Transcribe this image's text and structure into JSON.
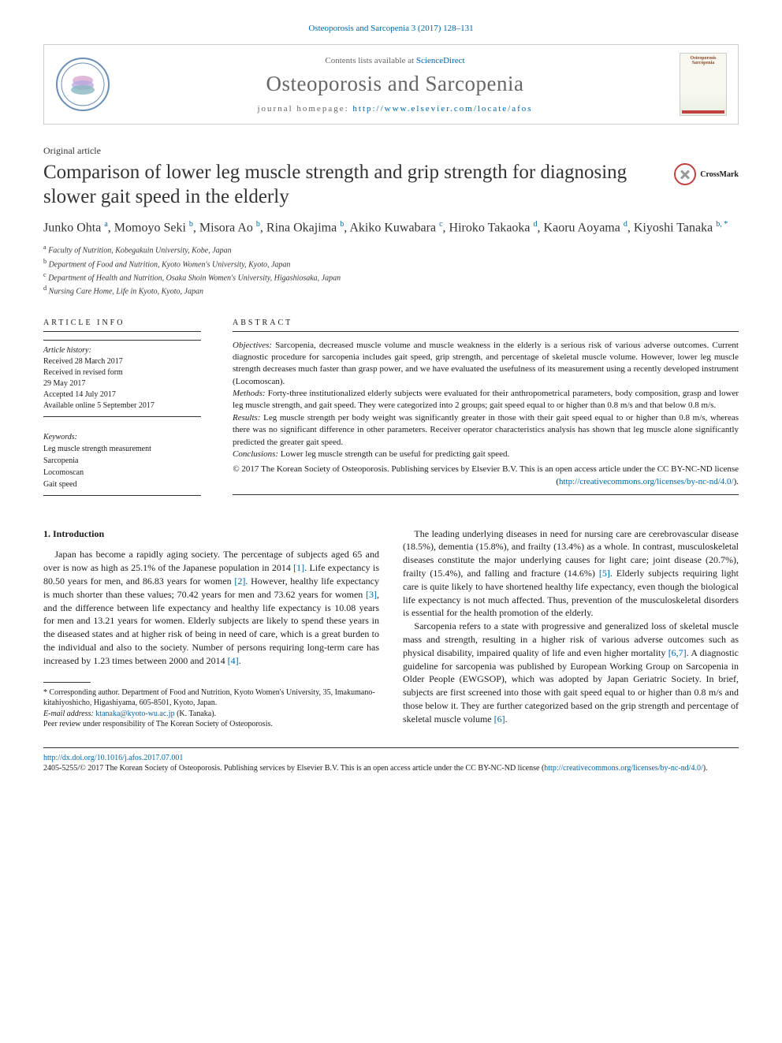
{
  "journal_ref": "Osteoporosis and Sarcopenia 3 (2017) 128–131",
  "header": {
    "contents_prefix": "Contents lists available at ",
    "contents_link": "ScienceDirect",
    "journal_name": "Osteoporosis and Sarcopenia",
    "homepage_prefix": "journal homepage: ",
    "homepage_url": "http://www.elsevier.com/locate/afos",
    "cover_title": "Osteoporosis Sarcopenia"
  },
  "article_type": "Original article",
  "title": "Comparison of lower leg muscle strength and grip strength for diagnosing slower gait speed in the elderly",
  "crossmark": "CrossMark",
  "authors_html": "Junko Ohta <sup>a</sup>, Momoyo Seki <sup>b</sup>, Misora Ao <sup>b</sup>, Rina Okajima <sup>b</sup>, Akiko Kuwabara <sup>c</sup>, Hiroko Takaoka <sup>d</sup>, Kaoru Aoyama <sup>d</sup>, Kiyoshi Tanaka <sup>b, </sup><sup class='star'>*</sup>",
  "affiliations": [
    "a Faculty of Nutrition, Kobegakuin University, Kobe, Japan",
    "b Department of Food and Nutrition, Kyoto Women's University, Kyoto, Japan",
    "c Department of Health and Nutrition, Osaka Shoin Women's University, Higashiosaka, Japan",
    "d Nursing Care Home, Life in Kyoto, Kyoto, Japan"
  ],
  "info": {
    "heading": "ARTICLE INFO",
    "history_label": "Article history:",
    "history": [
      "Received 28 March 2017",
      "Received in revised form",
      "29 May 2017",
      "Accepted 14 July 2017",
      "Available online 5 September 2017"
    ],
    "keywords_label": "Keywords:",
    "keywords": [
      "Leg muscle strength measurement",
      "Sarcopenia",
      "Locomoscan",
      "Gait speed"
    ]
  },
  "abstract": {
    "heading": "ABSTRACT",
    "objectives_label": "Objectives:",
    "objectives": " Sarcopenia, decreased muscle volume and muscle weakness in the elderly is a serious risk of various adverse outcomes. Current diagnostic procedure for sarcopenia includes gait speed, grip strength, and percentage of skeletal muscle volume. However, lower leg muscle strength decreases much faster than grasp power, and we have evaluated the usefulness of its measurement using a recently developed instrument (Locomoscan).",
    "methods_label": "Methods:",
    "methods": " Forty-three institutionalized elderly subjects were evaluated for their anthropometrical parameters, body composition, grasp and lower leg muscle strength, and gait speed. They were categorized into 2 groups; gait speed equal to or higher than 0.8 m/s and that below 0.8 m/s.",
    "results_label": "Results:",
    "results": " Leg muscle strength per body weight was significantly greater in those with their gait speed equal to or higher than 0.8 m/s, whereas there was no significant difference in other parameters. Receiver operator characteristics analysis has shown that leg muscle alone significantly predicted the greater gait speed.",
    "conclusions_label": "Conclusions:",
    "conclusions": " Lower leg muscle strength can be useful for predicting gait speed.",
    "copyright": "© 2017 The Korean Society of Osteoporosis. Publishing services by Elsevier B.V. This is an open access article under the CC BY-NC-ND license (",
    "cc_url": "http://creativecommons.org/licenses/by-nc-nd/4.0/",
    "copyright_suffix": ")."
  },
  "section1_heading": "1. Introduction",
  "para1_a": "Japan has become a rapidly aging society. The percentage of subjects aged 65 and over is now as high as 25.1% of the Japanese population in 2014 ",
  "ref1": "[1]",
  "para1_b": ". Life expectancy is 80.50 years for men, and 86.83 years for women ",
  "ref2": "[2]",
  "para1_c": ". However, healthy life expectancy is much shorter than these values; 70.42 years for men and 73.62 years for women ",
  "ref3": "[3]",
  "para1_d": ", and the difference between life expectancy and healthy life expectancy is 10.08 years for men and 13.21 years for women. Elderly subjects are likely to spend these years in the diseased states and at higher risk of being in need of care, which is a great burden to the individual and also to the society. Number of persons requiring long-term care has increased by 1.23 times between 2000 and 2014 ",
  "ref4": "[4]",
  "para1_e": ".",
  "para2_a": "The leading underlying diseases in need for nursing care are cerebrovascular disease (18.5%), dementia (15.8%), and frailty (13.4%) as a whole. In contrast, musculoskeletal diseases constitute the major underlying causes for light care; joint disease (20.7%), frailty (15.4%), and falling and fracture (14.6%) ",
  "ref5": "[5]",
  "para2_b": ". Elderly subjects requiring light care is quite likely to have shortened healthy life expectancy, even though the biological life expectancy is not much affected. Thus, prevention of the musculoskeletal disorders is essential for the health promotion of the elderly.",
  "para3_a": "Sarcopenia refers to a state with progressive and generalized loss of skeletal muscle mass and strength, resulting in a higher risk of various adverse outcomes such as physical disability, impaired quality of life and even higher mortality ",
  "ref67": "[6,7]",
  "para3_b": ". A diagnostic guideline for sarcopenia was published by European Working Group on Sarcopenia in Older People (EWGSOP), which was adopted by Japan Geriatric Society. In brief, subjects are first screened into those with gait speed equal to or higher than 0.8 m/s and those below it. They are further categorized based on the grip strength and percentage of skeletal muscle volume ",
  "ref6": "[6]",
  "para3_c": ".",
  "footnotes": {
    "corr_label": "* ",
    "corr": "Corresponding author. Department of Food and Nutrition, Kyoto Women's University, 35, Imakumano-kitahiyoshicho, Higashiyama, 605-8501, Kyoto, Japan.",
    "email_label": "E-mail address: ",
    "email": "ktanaka@kyoto-wu.ac.jp",
    "email_suffix": " (K. Tanaka).",
    "peer": "Peer review under responsibility of The Korean Society of Osteoporosis."
  },
  "footer": {
    "doi": "http://dx.doi.org/10.1016/j.afos.2017.07.001",
    "issn_copy": "2405-5255/© 2017 The Korean Society of Osteoporosis. Publishing services by Elsevier B.V. This is an open access article under the CC BY-NC-ND license (",
    "cc_url": "http://creativecommons.org/licenses/by-nc-nd/4.0/",
    "suffix": ")."
  },
  "colors": {
    "link": "#0066a6",
    "text": "#1a1a1a",
    "heading_gray": "#666",
    "crossmark_red": "#c04040"
  }
}
